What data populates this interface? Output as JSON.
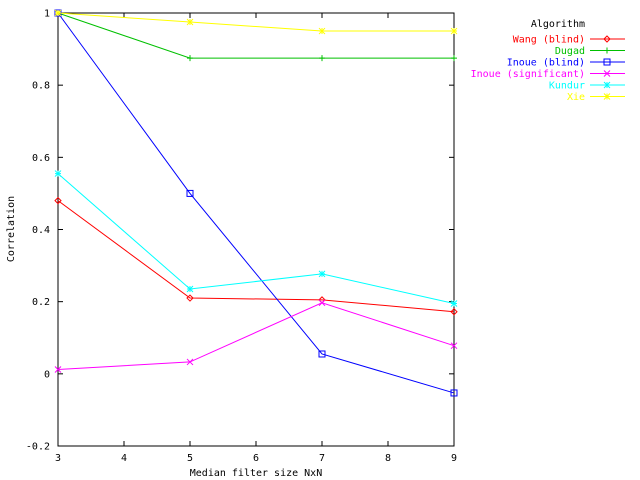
{
  "chart_data": {
    "type": "line",
    "title": "",
    "xlabel": "Median filter size NxN",
    "ylabel": "Correlation",
    "xlim": [
      3,
      9
    ],
    "ylim": [
      -0.2,
      1
    ],
    "x_ticks": [
      3,
      4,
      5,
      6,
      7,
      8,
      9
    ],
    "x_tick_labels": [
      "3",
      "4",
      "5",
      "6",
      "7",
      "8",
      "9"
    ],
    "y_ticks": [
      -0.2,
      0,
      0.2,
      0.4,
      0.6,
      0.8,
      1
    ],
    "y_tick_labels": [
      "-0.2",
      "0",
      "0.2",
      "0.4",
      "0.6",
      "0.8",
      "1"
    ],
    "grid": false,
    "legend_title": "Algorithm",
    "legend_position": "top-right, outside plot",
    "x": [
      3,
      5,
      7,
      9
    ],
    "series": [
      {
        "name": "Wang (blind)",
        "color": "#ff0000",
        "marker": "diamond",
        "values": [
          0.48,
          0.21,
          0.205,
          0.172
        ]
      },
      {
        "name": "Dugad",
        "color": "#00c000",
        "marker": "plus",
        "values": [
          1.0,
          0.875,
          0.875,
          0.875
        ]
      },
      {
        "name": "Inoue (blind)",
        "color": "#0000ff",
        "marker": "square",
        "values": [
          1.0,
          0.5,
          0.055,
          -0.053
        ]
      },
      {
        "name": "Inoue (significant)",
        "color": "#ff00ff",
        "marker": "cross",
        "values": [
          0.012,
          0.033,
          0.197,
          0.078
        ]
      },
      {
        "name": "Kundur",
        "color": "#00ffff",
        "marker": "star",
        "values": [
          0.555,
          0.235,
          0.277,
          0.195
        ]
      },
      {
        "name": "Xie",
        "color": "#ffff00",
        "marker": "star",
        "values": [
          1.0,
          0.975,
          0.95,
          0.95
        ]
      }
    ]
  }
}
